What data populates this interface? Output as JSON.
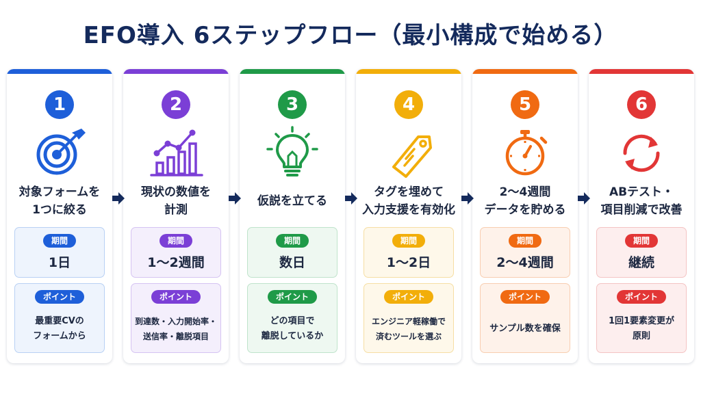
{
  "title": "EFO導入 6ステップフロー（最小構成で始める）",
  "period_label": "期間",
  "point_label": "ポイント",
  "steps": [
    {
      "number": "1",
      "icon": "target-icon",
      "title": "対象フォームを\n1つに絞る",
      "period": "1日",
      "point": "最重要CVの\nフォームから",
      "color": "#1e5fd9",
      "tint": "#eef4fd",
      "border": "#b8d0f4"
    },
    {
      "number": "2",
      "icon": "growth-chart-icon",
      "title": "現状の数値を\n計測",
      "period": "1〜2週間",
      "point": "到達数・入力開始率・\n送信率・離脱項目",
      "color": "#7b3fd6",
      "tint": "#f4effc",
      "border": "#d5c3f2"
    },
    {
      "number": "3",
      "icon": "lightbulb-icon",
      "title": "仮説を立てる",
      "period": "数日",
      "point": "どの項目で\n離脱しているか",
      "color": "#1f9a48",
      "tint": "#eef8f1",
      "border": "#bfe3cb"
    },
    {
      "number": "4",
      "icon": "tag-icon",
      "title": "タグを埋めて\n入力支援を有効化",
      "period": "1〜2日",
      "point": "エンジニア軽稼働で\n済むツールを選ぶ",
      "color": "#f2ae0a",
      "tint": "#fef8ea",
      "border": "#f6dea3"
    },
    {
      "number": "5",
      "icon": "stopwatch-icon",
      "title": "2〜4週間\nデータを貯める",
      "period": "2〜4週間",
      "point": "サンプル数を確保",
      "color": "#f06a12",
      "tint": "#fef2ea",
      "border": "#f8cdb0"
    },
    {
      "number": "6",
      "icon": "refresh-cycle-icon",
      "title": "ABテスト・\n項目削減で改善",
      "period": "継続",
      "point": "1回1要素変更が\n原則",
      "color": "#e23636",
      "tint": "#fdeeee",
      "border": "#f4c3c3"
    }
  ]
}
